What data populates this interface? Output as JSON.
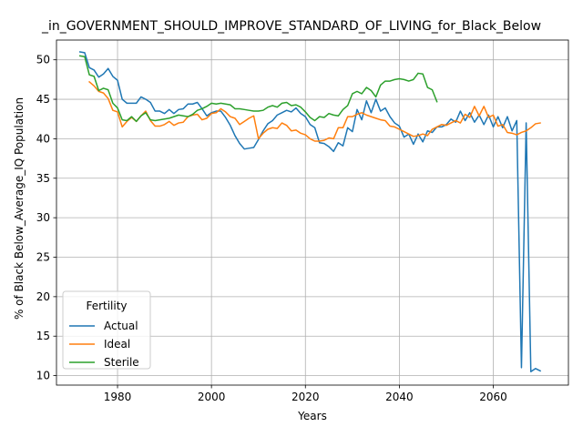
{
  "chart_data": {
    "type": "line",
    "title": "_in_GOVERNMENT_SHOULD_IMPROVE_STANDARD_OF_LIVING_for_Black_Below",
    "xlabel": "Years",
    "ylabel": "% of Black Below_Average_IQ Population",
    "xlim": [
      1967,
      2076
    ],
    "ylim": [
      8.8,
      52.5
    ],
    "xticks": [
      1980,
      2000,
      2020,
      2040,
      2060
    ],
    "yticks": [
      10,
      15,
      20,
      25,
      30,
      35,
      40,
      45,
      50
    ],
    "grid": true,
    "legend": {
      "title": "Fertility",
      "placement": "lower-left"
    },
    "series": [
      {
        "name": "Actual",
        "color": "#1f77b4",
        "x": [
          1972,
          1973,
          1974,
          1975,
          1976,
          1977,
          1978,
          1979,
          1980,
          1981,
          1982,
          1983,
          1984,
          1985,
          1986,
          1987,
          1988,
          1989,
          1990,
          1991,
          1992,
          1993,
          1994,
          1995,
          1996,
          1997,
          1998,
          1999,
          2000,
          2001,
          2002,
          2003,
          2004,
          2005,
          2006,
          2007,
          2008,
          2009,
          2010,
          2011,
          2012,
          2013,
          2014,
          2015,
          2016,
          2017,
          2018,
          2019,
          2020,
          2021,
          2022,
          2023,
          2024,
          2025,
          2026,
          2027,
          2028,
          2029,
          2030,
          2031,
          2032,
          2033,
          2034,
          2035,
          2036,
          2037,
          2038,
          2039,
          2040,
          2041,
          2042,
          2043,
          2044,
          2045,
          2046,
          2047,
          2048,
          2049,
          2050,
          2051,
          2052,
          2053,
          2054,
          2055,
          2056,
          2057,
          2058,
          2059,
          2060,
          2061,
          2062,
          2063,
          2064,
          2065,
          2066,
          2067,
          2068,
          2069,
          2070
        ],
        "values": [
          51.0,
          50.9,
          49.0,
          48.7,
          47.8,
          48.2,
          48.9,
          47.9,
          47.4,
          45.0,
          44.5,
          44.5,
          44.5,
          45.3,
          45.0,
          44.6,
          43.5,
          43.5,
          43.2,
          43.7,
          43.2,
          43.7,
          43.8,
          44.4,
          44.4,
          44.6,
          43.8,
          42.9,
          43.3,
          43.5,
          43.5,
          42.7,
          41.7,
          40.4,
          39.4,
          38.7,
          38.8,
          38.9,
          39.9,
          41.0,
          41.9,
          42.3,
          43.0,
          43.3,
          43.6,
          43.4,
          43.9,
          43.2,
          42.8,
          41.8,
          41.4,
          39.5,
          39.4,
          39.0,
          38.4,
          39.5,
          39.1,
          41.4,
          40.9,
          43.7,
          42.4,
          44.8,
          43.3,
          45.0,
          43.5,
          43.9,
          42.8,
          42.0,
          41.6,
          40.2,
          40.6,
          39.3,
          40.6,
          39.6,
          41.0,
          40.8,
          41.5,
          41.5,
          41.8,
          42.5,
          42.1,
          43.5,
          42.3,
          43.3,
          42.1,
          43.0,
          41.8,
          43.0,
          41.5,
          42.8,
          41.4,
          42.8,
          41.0,
          42.3,
          11.0,
          42.0,
          10.5,
          10.9,
          10.6
        ]
      },
      {
        "name": "Ideal",
        "color": "#ff7f0e",
        "x": [
          1974,
          1975,
          1976,
          1977,
          1978,
          1979,
          1980,
          1981,
          1982,
          1983,
          1984,
          1985,
          1986,
          1987,
          1988,
          1989,
          1990,
          1991,
          1992,
          1993,
          1994,
          1995,
          1996,
          1997,
          1998,
          1999,
          2000,
          2001,
          2002,
          2003,
          2004,
          2005,
          2006,
          2007,
          2008,
          2009,
          2010,
          2011,
          2012,
          2013,
          2014,
          2015,
          2016,
          2017,
          2018,
          2019,
          2020,
          2021,
          2022,
          2023,
          2024,
          2025,
          2026,
          2027,
          2028,
          2029,
          2030,
          2031,
          2032,
          2033,
          2034,
          2035,
          2036,
          2037,
          2038,
          2039,
          2040,
          2041,
          2042,
          2043,
          2044,
          2045,
          2046,
          2047,
          2048,
          2049,
          2050,
          2051,
          2052,
          2053,
          2054,
          2055,
          2056,
          2057,
          2058,
          2059,
          2060,
          2061,
          2062,
          2063,
          2064,
          2065,
          2066,
          2067,
          2068,
          2069,
          2070
        ],
        "values": [
          47.2,
          46.7,
          46.0,
          45.8,
          45.1,
          43.6,
          43.4,
          41.5,
          42.2,
          42.7,
          42.2,
          42.9,
          43.5,
          42.3,
          41.6,
          41.6,
          41.8,
          42.2,
          41.7,
          42.0,
          42.1,
          42.8,
          43.0,
          43.1,
          42.4,
          42.6,
          43.2,
          43.3,
          43.8,
          43.4,
          42.8,
          42.6,
          41.8,
          42.2,
          42.6,
          42.9,
          40.0,
          40.7,
          41.2,
          41.4,
          41.3,
          42.0,
          41.7,
          41.0,
          41.1,
          40.7,
          40.5,
          40.0,
          39.7,
          39.7,
          39.8,
          40.1,
          40.0,
          41.4,
          41.4,
          42.8,
          42.8,
          43.1,
          43.3,
          43.0,
          42.8,
          42.6,
          42.4,
          42.3,
          41.6,
          41.5,
          41.2,
          40.9,
          40.6,
          40.3,
          40.4,
          40.6,
          40.4,
          41.2,
          41.5,
          41.8,
          41.7,
          42.0,
          42.3,
          42.0,
          43.1,
          42.7,
          44.1,
          42.9,
          44.1,
          42.7,
          43.0,
          41.6,
          41.8,
          40.8,
          40.7,
          40.5,
          40.8,
          41.0,
          41.4,
          41.9,
          42.0
        ]
      },
      {
        "name": "Sterile",
        "color": "#2ca02c",
        "x": [
          1972,
          1973,
          1974,
          1975,
          1976,
          1977,
          1978,
          1979,
          1980,
          1981,
          1982,
          1983,
          1984,
          1985,
          1986,
          1987,
          1988,
          1989,
          1990,
          1991,
          1992,
          1993,
          1994,
          1995,
          1996,
          1997,
          1998,
          1999,
          2000,
          2001,
          2002,
          2003,
          2004,
          2005,
          2006,
          2007,
          2008,
          2009,
          2010,
          2011,
          2012,
          2013,
          2014,
          2015,
          2016,
          2017,
          2018,
          2019,
          2020,
          2021,
          2022,
          2023,
          2024,
          2025,
          2026,
          2027,
          2028,
          2029,
          2030,
          2031,
          2032,
          2033,
          2034,
          2035,
          2036,
          2037,
          2038,
          2039,
          2040,
          2041,
          2042,
          2043,
          2044,
          2045,
          2046,
          2047,
          2048
        ],
        "values": [
          50.5,
          50.4,
          48.1,
          47.9,
          46.1,
          46.4,
          46.2,
          44.5,
          43.9,
          42.4,
          42.3,
          42.8,
          42.2,
          42.9,
          43.3,
          42.4,
          42.3,
          42.4,
          42.5,
          42.6,
          42.8,
          43.0,
          42.9,
          42.8,
          43.1,
          43.6,
          43.8,
          44.1,
          44.5,
          44.4,
          44.5,
          44.4,
          44.3,
          43.8,
          43.8,
          43.7,
          43.6,
          43.5,
          43.5,
          43.6,
          44.0,
          44.2,
          44.0,
          44.5,
          44.6,
          44.2,
          44.3,
          44.0,
          43.4,
          42.7,
          42.3,
          42.8,
          42.7,
          43.2,
          43.0,
          42.9,
          43.7,
          44.2,
          45.7,
          46.0,
          45.7,
          46.5,
          46.1,
          45.3,
          46.8,
          47.3,
          47.3,
          47.5,
          47.6,
          47.5,
          47.3,
          47.5,
          48.3,
          48.2,
          46.5,
          46.2,
          44.7
        ]
      }
    ]
  }
}
